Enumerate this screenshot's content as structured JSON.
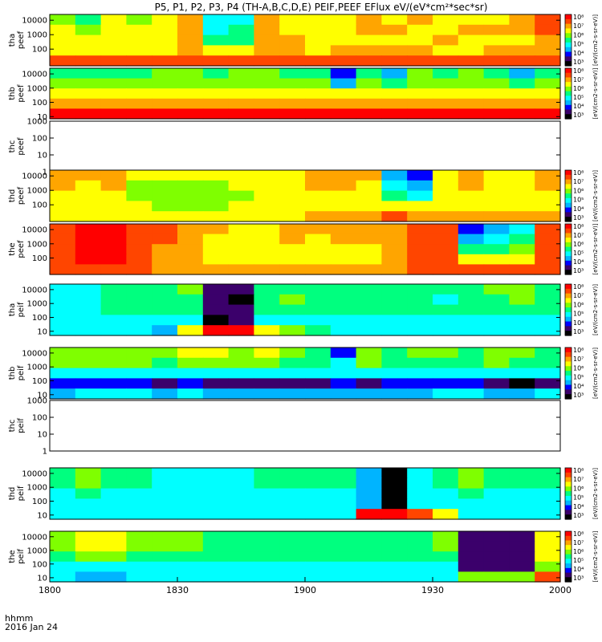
{
  "chart_data": {
    "type": "heatmap",
    "title": "P5, P1, P2, P3, P4 (TH-A,B,C,D,E) PEIF,PEEF EFlux eV/(eV*cm²*sec*sr)",
    "x_ticks": [
      "1800",
      "1830",
      "1900",
      "1930",
      "2000"
    ],
    "x_range": [
      "1800",
      "2000"
    ],
    "x_axis_label": "hhmm",
    "date_label": "2016 Jan 24",
    "colorbar": {
      "labels": [
        "10⁸",
        "10⁷",
        "10⁶",
        "10⁵",
        "10⁴",
        "10³"
      ],
      "colormap": [
        "#000000",
        "#3b006b",
        "#0000ff",
        "#00b4ff",
        "#00ffff",
        "#00ff7f",
        "#7fff00",
        "#ffff00",
        "#ffa500",
        "#ff4500",
        "#ff0000"
      ]
    },
    "panels": [
      {
        "id": "tha-peef",
        "label": [
          "tha",
          "peef"
        ],
        "y_ticks": [
          "10000",
          "1000",
          "100"
        ],
        "y_range": [
          7,
          25000
        ],
        "has_data": true,
        "cbar_title": "[eV/(cm2-s-sr-eV)]",
        "bins": [
          [
            6,
            5,
            7,
            6,
            7,
            8,
            4,
            4,
            8,
            7,
            7,
            7,
            8,
            7,
            8,
            7,
            7,
            7,
            8,
            9
          ],
          [
            7,
            6,
            7,
            7,
            7,
            8,
            4,
            5,
            8,
            7,
            7,
            7,
            8,
            8,
            7,
            7,
            8,
            8,
            8,
            9
          ],
          [
            7,
            7,
            7,
            7,
            7,
            8,
            5,
            5,
            8,
            8,
            7,
            7,
            7,
            7,
            7,
            8,
            7,
            7,
            7,
            8
          ],
          [
            7,
            7,
            7,
            7,
            7,
            8,
            7,
            7,
            8,
            8,
            7,
            8,
            8,
            8,
            8,
            7,
            7,
            8,
            8,
            8
          ],
          [
            9,
            9,
            9,
            9,
            9,
            9,
            9,
            9,
            9,
            9,
            9,
            9,
            9,
            9,
            9,
            9,
            9,
            9,
            9,
            9
          ]
        ]
      },
      {
        "id": "thb-peef",
        "label": [
          "thb",
          "peef"
        ],
        "y_ticks": [
          "10000",
          "1000",
          "100",
          "10"
        ],
        "y_range": [
          7,
          25000
        ],
        "has_data": true,
        "cbar_title": "[eV/(cm2-s-sr-eV)]",
        "bins": [
          [
            5,
            5,
            5,
            5,
            6,
            6,
            5,
            6,
            6,
            5,
            5,
            2,
            5,
            3,
            6,
            5,
            6,
            5,
            3,
            5
          ],
          [
            6,
            6,
            6,
            6,
            6,
            6,
            6,
            6,
            6,
            6,
            6,
            3,
            6,
            5,
            6,
            6,
            6,
            6,
            5,
            6
          ],
          [
            7,
            7,
            7,
            7,
            7,
            7,
            7,
            7,
            7,
            7,
            7,
            7,
            7,
            7,
            7,
            7,
            7,
            7,
            7,
            7
          ],
          [
            8,
            8,
            8,
            8,
            8,
            8,
            8,
            8,
            8,
            8,
            8,
            8,
            8,
            8,
            8,
            8,
            8,
            8,
            8,
            8
          ],
          [
            10,
            10,
            10,
            10,
            10,
            10,
            10,
            10,
            10,
            10,
            10,
            10,
            10,
            10,
            10,
            10,
            10,
            10,
            10,
            10
          ]
        ]
      },
      {
        "id": "thc-peef",
        "label": [
          "thc",
          "peef"
        ],
        "y_ticks": [
          "1000",
          "100",
          "10",
          "1"
        ],
        "y_range": [
          1,
          1000
        ],
        "has_data": false,
        "cbar_title": "",
        "bins": []
      },
      {
        "id": "thd-peef",
        "label": [
          "thd",
          "peef"
        ],
        "y_ticks": [
          "10000",
          "1000",
          "100"
        ],
        "y_range": [
          7,
          25000
        ],
        "has_data": true,
        "cbar_title": "[eV/(cm2-s-sr-eV)]",
        "bins": [
          [
            8,
            8,
            8,
            7,
            7,
            7,
            7,
            7,
            7,
            7,
            8,
            8,
            8,
            3,
            2,
            7,
            8,
            7,
            7,
            8
          ],
          [
            8,
            7,
            8,
            6,
            6,
            6,
            6,
            7,
            7,
            7,
            8,
            8,
            7,
            4,
            3,
            7,
            8,
            7,
            7,
            8
          ],
          [
            7,
            7,
            7,
            6,
            6,
            6,
            6,
            6,
            7,
            7,
            7,
            7,
            7,
            5,
            4,
            7,
            7,
            7,
            7,
            7
          ],
          [
            7,
            7,
            7,
            7,
            6,
            6,
            6,
            7,
            7,
            7,
            7,
            7,
            7,
            7,
            7,
            7,
            7,
            7,
            7,
            7
          ],
          [
            7,
            7,
            7,
            7,
            7,
            7,
            7,
            7,
            7,
            7,
            8,
            8,
            8,
            9,
            8,
            8,
            8,
            8,
            8,
            8
          ]
        ]
      },
      {
        "id": "the-peef",
        "label": [
          "the",
          "peef"
        ],
        "y_ticks": [
          "10000",
          "1000",
          "100"
        ],
        "y_range": [
          7,
          25000
        ],
        "has_data": true,
        "cbar_title": "[eV/(cm2-s-sr-eV)]",
        "bins": [
          [
            9,
            10,
            10,
            9,
            9,
            8,
            8,
            7,
            7,
            8,
            8,
            8,
            8,
            8,
            9,
            9,
            2,
            3,
            4,
            9
          ],
          [
            9,
            10,
            10,
            9,
            9,
            8,
            7,
            7,
            7,
            8,
            7,
            8,
            8,
            8,
            9,
            9,
            3,
            4,
            5,
            9
          ],
          [
            9,
            10,
            10,
            9,
            8,
            8,
            7,
            7,
            7,
            7,
            7,
            7,
            7,
            8,
            9,
            9,
            5,
            5,
            6,
            9
          ],
          [
            9,
            10,
            10,
            9,
            8,
            8,
            7,
            7,
            7,
            7,
            7,
            7,
            7,
            8,
            9,
            9,
            7,
            7,
            7,
            9
          ],
          [
            9,
            9,
            9,
            9,
            8,
            8,
            8,
            8,
            8,
            8,
            8,
            8,
            8,
            8,
            9,
            9,
            9,
            9,
            9,
            9
          ]
        ]
      },
      {
        "id": "tha-peif",
        "label": [
          "tha",
          "peif"
        ],
        "y_ticks": [
          "10000",
          "1000",
          "100",
          "10"
        ],
        "y_range": [
          5,
          25000
        ],
        "has_data": true,
        "cbar_title": "[eV/(cm2-s-sr-eV)]",
        "bins": [
          [
            4,
            4,
            5,
            5,
            5,
            6,
            1,
            1,
            5,
            5,
            5,
            5,
            5,
            5,
            5,
            5,
            5,
            6,
            6,
            5
          ],
          [
            4,
            4,
            5,
            5,
            5,
            5,
            1,
            0,
            5,
            6,
            5,
            5,
            5,
            5,
            5,
            4,
            5,
            5,
            6,
            5
          ],
          [
            4,
            4,
            5,
            5,
            5,
            5,
            1,
            1,
            5,
            5,
            5,
            5,
            5,
            5,
            5,
            5,
            5,
            5,
            5,
            5
          ],
          [
            4,
            4,
            4,
            4,
            4,
            4,
            0,
            1,
            4,
            4,
            4,
            4,
            4,
            4,
            4,
            4,
            4,
            4,
            4,
            4
          ],
          [
            4,
            4,
            4,
            4,
            3,
            7,
            10,
            10,
            7,
            6,
            5,
            4,
            4,
            4,
            4,
            4,
            4,
            4,
            4,
            4
          ]
        ]
      },
      {
        "id": "thb-peif",
        "label": [
          "thb",
          "peif"
        ],
        "y_ticks": [
          "10000",
          "1000",
          "100",
          "10"
        ],
        "y_range": [
          5,
          25000
        ],
        "has_data": true,
        "cbar_title": "[eV/(cm2-s-sr-eV)]",
        "bins": [
          [
            6,
            6,
            6,
            6,
            6,
            7,
            7,
            6,
            7,
            6,
            5,
            2,
            6,
            5,
            6,
            6,
            5,
            6,
            6,
            5
          ],
          [
            6,
            6,
            6,
            6,
            5,
            6,
            6,
            6,
            6,
            5,
            5,
            4,
            6,
            5,
            5,
            5,
            5,
            6,
            5,
            5
          ],
          [
            4,
            4,
            4,
            4,
            4,
            4,
            4,
            4,
            4,
            4,
            4,
            4,
            4,
            4,
            4,
            4,
            4,
            4,
            4,
            4
          ],
          [
            2,
            2,
            2,
            2,
            1,
            2,
            1,
            1,
            1,
            1,
            1,
            2,
            1,
            2,
            2,
            2,
            2,
            1,
            0,
            1
          ],
          [
            3,
            4,
            4,
            4,
            3,
            4,
            3,
            3,
            3,
            3,
            3,
            3,
            3,
            3,
            3,
            4,
            4,
            3,
            3,
            4
          ]
        ]
      },
      {
        "id": "thc-peif",
        "label": [
          "thc",
          "peif"
        ],
        "y_ticks": [
          "1000",
          "100",
          "10",
          "1"
        ],
        "y_range": [
          1,
          1000
        ],
        "has_data": false,
        "cbar_title": "",
        "bins": []
      },
      {
        "id": "thd-peif",
        "label": [
          "thd",
          "peif"
        ],
        "y_ticks": [
          "10000",
          "1000",
          "100",
          "10"
        ],
        "y_range": [
          5,
          25000
        ],
        "has_data": true,
        "cbar_title": "[eV/(cm2-s-sr-eV)]",
        "bins": [
          [
            5,
            6,
            5,
            5,
            4,
            4,
            4,
            4,
            5,
            5,
            5,
            5,
            3,
            0,
            4,
            5,
            6,
            5,
            5,
            5
          ],
          [
            5,
            6,
            5,
            5,
            4,
            4,
            4,
            4,
            5,
            5,
            5,
            5,
            3,
            0,
            4,
            5,
            6,
            5,
            5,
            5
          ],
          [
            4,
            5,
            4,
            4,
            4,
            4,
            4,
            4,
            4,
            4,
            4,
            4,
            3,
            0,
            4,
            4,
            5,
            4,
            4,
            4
          ],
          [
            4,
            4,
            4,
            4,
            4,
            4,
            4,
            4,
            4,
            4,
            4,
            4,
            3,
            0,
            4,
            4,
            4,
            4,
            4,
            4
          ],
          [
            4,
            4,
            4,
            4,
            4,
            4,
            4,
            4,
            4,
            4,
            4,
            4,
            10,
            10,
            9,
            7,
            4,
            4,
            4,
            4
          ]
        ]
      },
      {
        "id": "the-peif",
        "label": [
          "the",
          "peif"
        ],
        "y_ticks": [
          "10000",
          "1000",
          "100",
          "10"
        ],
        "y_range": [
          5,
          25000
        ],
        "has_data": true,
        "cbar_title": "[eV/(cm2-s-sr-eV)]",
        "bins": [
          [
            6,
            7,
            7,
            6,
            6,
            6,
            5,
            5,
            5,
            5,
            5,
            5,
            5,
            5,
            5,
            6,
            1,
            1,
            1,
            7
          ],
          [
            6,
            7,
            7,
            6,
            6,
            6,
            5,
            5,
            5,
            5,
            5,
            5,
            5,
            5,
            5,
            6,
            1,
            1,
            1,
            7
          ],
          [
            5,
            6,
            6,
            5,
            5,
            5,
            5,
            5,
            5,
            5,
            5,
            5,
            5,
            5,
            5,
            5,
            1,
            1,
            1,
            7
          ],
          [
            4,
            4,
            4,
            4,
            4,
            4,
            4,
            4,
            4,
            4,
            4,
            4,
            4,
            4,
            4,
            4,
            1,
            1,
            1,
            6
          ],
          [
            4,
            3,
            3,
            4,
            4,
            4,
            4,
            4,
            4,
            4,
            4,
            4,
            4,
            4,
            4,
            4,
            6,
            6,
            6,
            9
          ]
        ]
      }
    ]
  }
}
